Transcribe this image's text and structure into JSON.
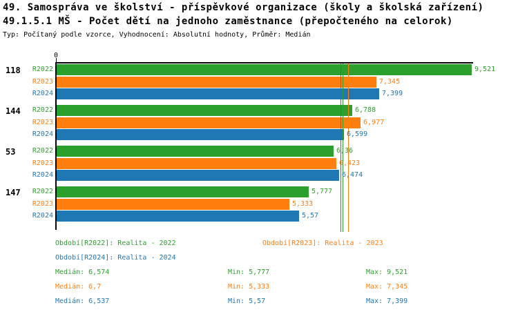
{
  "header": {
    "title1": "49. Samospráva ve školství - příspěvkové organizace (školy a školská zařízení)",
    "title2": "49.1.5.1 MŠ - Počet dětí na jednoho zaměstnance (přepočteného na celorok)",
    "meta": "Typ: Počítaný podle vzorce, Vyhodnocení: Absolutní hodnoty, Průměr: Medián"
  },
  "chart_data": {
    "type": "bar",
    "orientation": "horizontal",
    "title": "49.1.5.1 MŠ - Počet dětí na jednoho zaměstnance (přepočteného na celorok)",
    "xlabel": "",
    "ylabel": "",
    "xlim": [
      0,
      9.6
    ],
    "grid": false,
    "axis_zero_label": "0",
    "series_names": [
      "R2022",
      "R2023",
      "R2024"
    ],
    "series_colors": {
      "R2022": "#2ca02c",
      "R2023": "#ff7f0e",
      "R2024": "#1f77b4"
    },
    "groups": [
      {
        "label": "118",
        "values": [
          9.521,
          7.345,
          7.399
        ],
        "displays": [
          "9,521",
          "7,345",
          "7,399"
        ]
      },
      {
        "label": "144",
        "values": [
          6.788,
          6.977,
          6.599
        ],
        "displays": [
          "6,788",
          "6,977",
          "6,599"
        ]
      },
      {
        "label": "53",
        "values": [
          6.36,
          6.423,
          6.474
        ],
        "displays": [
          "6,36",
          "6,423",
          "6,474"
        ]
      },
      {
        "label": "147",
        "values": [
          5.777,
          5.333,
          5.57
        ],
        "displays": [
          "5,777",
          "5,333",
          "5,57"
        ]
      }
    ],
    "median_lines": [
      {
        "series": "R2024",
        "value": 6.537
      },
      {
        "series": "R2022",
        "value": 6.574
      },
      {
        "series": "R2023",
        "value": 6.7
      }
    ]
  },
  "legend": [
    {
      "series": "R2022",
      "label": "Období[R2022]: Realita - 2022"
    },
    {
      "series": "R2023",
      "label": "Období[R2023]: Realita - 2023"
    },
    {
      "series": "R2024",
      "label": "Období[R2024]: Realita - 2024"
    }
  ],
  "stats": [
    {
      "series": "R2022",
      "median": "Medián: 6,574",
      "min": "Min: 5,777",
      "max": "Max: 9,521"
    },
    {
      "series": "R2023",
      "median": "Medián: 6,7",
      "min": "Min: 5,333",
      "max": "Max: 7,345"
    },
    {
      "series": "R2024",
      "median": "Medián: 6,537",
      "min": "Min: 5,57",
      "max": "Max: 7,399"
    }
  ]
}
